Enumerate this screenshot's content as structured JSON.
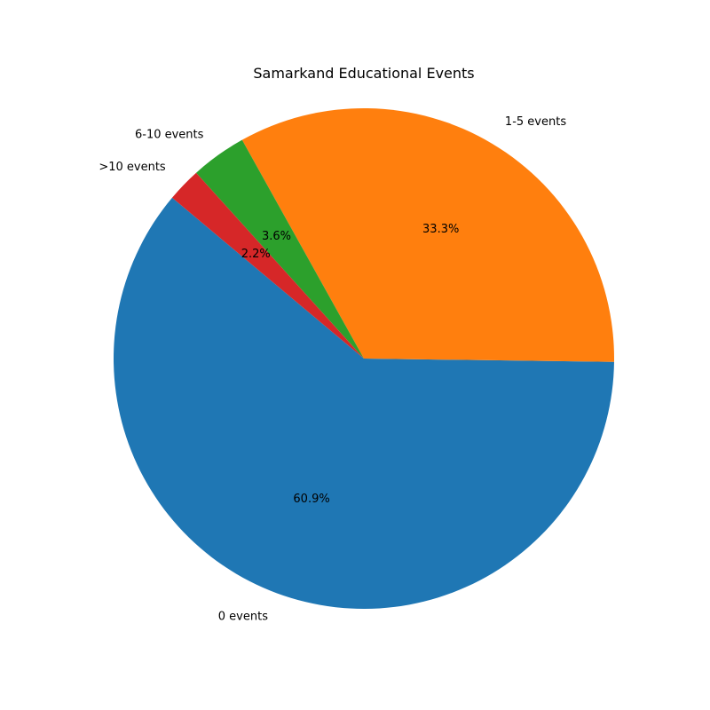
{
  "chart_data": {
    "type": "pie",
    "title": "Samarkand Educational Events",
    "categories": [
      "0 events",
      "1-5 events",
      "6-10 events",
      ">10 events"
    ],
    "values": [
      60.9,
      33.3,
      3.6,
      2.2
    ],
    "percent_labels": [
      "60.9%",
      "33.3%",
      "3.6%",
      "2.2%"
    ],
    "colors": [
      "#1f77b4",
      "#ff7f0e",
      "#2ca02c",
      "#d62728"
    ],
    "start_angle_deg": 140,
    "direction": "counterclockwise",
    "legend": "none"
  }
}
